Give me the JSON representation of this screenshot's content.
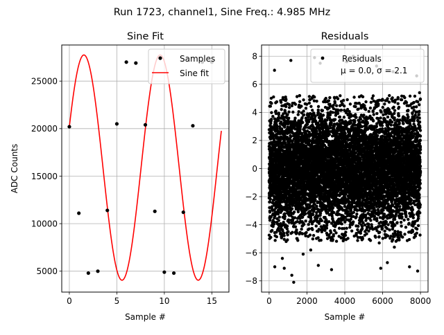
{
  "suptitle": "Run 1723, channel1, Sine Freq.: 4.985 MHz",
  "chart_data": [
    {
      "type": "line",
      "title": "Sine Fit",
      "xlabel": "Sample #",
      "ylabel": "ADC Counts",
      "xlim": [
        -0.8,
        16.8
      ],
      "ylim": [
        2800,
        28800
      ],
      "xticks": [
        0,
        5,
        10,
        15
      ],
      "yticks": [
        5000,
        10000,
        15000,
        20000,
        25000
      ],
      "grid": true,
      "legend_position": "top-right",
      "series": [
        {
          "name": "Samples",
          "style": "markers",
          "color": "#000000",
          "x": [
            0,
            1,
            2,
            3,
            4,
            5,
            6,
            7,
            8,
            9,
            10,
            11,
            12,
            13,
            14,
            15
          ],
          "y": [
            20200,
            11100,
            4800,
            5000,
            11400,
            20500,
            27000,
            26900,
            20400,
            11300,
            4900,
            4800,
            11200,
            20300,
            27000,
            27000
          ]
        },
        {
          "name": "Sine fit",
          "style": "line",
          "color": "#ff0000",
          "model": {
            "offset": 15900,
            "amplitude": 11850,
            "period": 8.024,
            "phase": 0.37,
            "x_start": 0,
            "x_end": 16
          }
        }
      ]
    },
    {
      "type": "scatter",
      "title": "Residuals",
      "xlabel": "Sample #",
      "ylabel": "",
      "xlim": [
        -400,
        8400
      ],
      "ylim": [
        -8.8,
        8.8
      ],
      "xticks": [
        0,
        2000,
        4000,
        6000,
        8000
      ],
      "yticks": [
        -8,
        -6,
        -4,
        -2,
        0,
        2,
        4,
        6,
        8
      ],
      "grid": true,
      "legend_position": "top-right",
      "series": [
        {
          "name": "Residuals",
          "color": "#000000",
          "n_points": 8000,
          "mean": 0.0,
          "sigma": 2.1,
          "outliers": [
            [
              285,
              7.0
            ],
            [
              1150,
              7.7
            ],
            [
              2400,
              7.9
            ],
            [
              2700,
              7.5
            ],
            [
              4100,
              7.6
            ],
            [
              4450,
              8.0
            ],
            [
              4720,
              7.8
            ],
            [
              5680,
              7.3
            ],
            [
              6550,
              6.9
            ],
            [
              7800,
              6.6
            ],
            [
              7950,
              5.4
            ],
            [
              300,
              -7.0
            ],
            [
              700,
              -6.4
            ],
            [
              800,
              -7.1
            ],
            [
              1300,
              -8.1
            ],
            [
              900,
              -5.2
            ],
            [
              1200,
              -7.6
            ],
            [
              1800,
              -6.1
            ],
            [
              2200,
              -5.8
            ],
            [
              2600,
              -6.9
            ],
            [
              3300,
              -7.2
            ],
            [
              5820,
              -5.3
            ],
            [
              5900,
              -7.1
            ],
            [
              6250,
              -6.7
            ],
            [
              6620,
              -5.6
            ],
            [
              7420,
              -7.0
            ],
            [
              7850,
              -7.3
            ]
          ]
        }
      ],
      "legend_label": "Residuals",
      "stats_text": "μ = 0.0, σ = 2.1"
    }
  ]
}
